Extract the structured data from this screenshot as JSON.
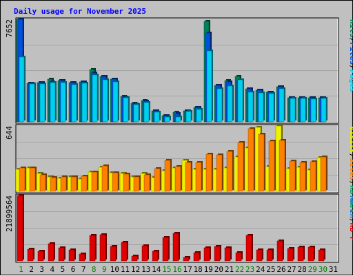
{
  "chart_data": {
    "type": "bar",
    "title": "Daily usage for November 2025",
    "days": [
      "1",
      "2",
      "3",
      "4",
      "5",
      "6",
      "7",
      "8",
      "9",
      "10",
      "11",
      "12",
      "13",
      "14",
      "15",
      "16",
      "17",
      "18",
      "19",
      "20",
      "21",
      "22",
      "23",
      "24",
      "25",
      "26",
      "27",
      "28",
      "29",
      "30",
      "31"
    ],
    "weekend_days": [
      1,
      8,
      9,
      15,
      16,
      22,
      23,
      29,
      30
    ],
    "colors": {
      "hits": "#00805c",
      "files": "#0050e0",
      "pages": "#00d0f0",
      "visits": "#f0f000",
      "sites": "#ff8000",
      "kb_in": "#2080d0",
      "kb_out": "#00a060",
      "kb_f": "#e00000",
      "weekday_label": "#000000",
      "weekend_label": "#008000"
    },
    "panels": [
      {
        "ymax_label": "7652",
        "ymax": 7652,
        "legend": [
          {
            "text": "Hits",
            "color": "#00805c"
          },
          {
            "text": "/",
            "color": "#000000"
          },
          {
            "text": "Files",
            "color": "#0050e0"
          },
          {
            "text": "/",
            "color": "#000000"
          },
          {
            "text": "Pages",
            "color": "#00d0f0"
          }
        ],
        "series": [
          {
            "name": "Hits",
            "color": "#00805c",
            "values": [
              7652,
              2870,
              2920,
              3180,
              3080,
              2950,
              3000,
              3920,
              3400,
              3200,
              1920,
              1400,
              1600,
              840,
              480,
              740,
              840,
              1100,
              7520,
              2700,
              3080,
              3400,
              2450,
              2380,
              2200,
              2630,
              1820,
              1820,
              1800,
              1800,
              null
            ]
          },
          {
            "name": "Files",
            "color": "#0050e0",
            "values": [
              7652,
              2870,
              2920,
              3000,
              3080,
              2950,
              3000,
              3660,
              3400,
              3200,
              1840,
              1340,
              1520,
              840,
              460,
              640,
              820,
              1060,
              6600,
              2700,
              3000,
              3100,
              2450,
              2380,
              2200,
              2630,
              1820,
              1820,
              1800,
              1800,
              null
            ]
          },
          {
            "name": "Pages",
            "color": "#00d0f0",
            "values": [
              4840,
              2800,
              2820,
              2940,
              2940,
              2780,
              2900,
              3500,
              3120,
              3000,
              1780,
              1280,
              1460,
              720,
              380,
              360,
              760,
              940,
              5300,
              2480,
              2680,
              3120,
              2200,
              2180,
              2100,
              2440,
              1740,
              1740,
              1700,
              1740,
              null
            ]
          }
        ]
      },
      {
        "ymax_label": "644",
        "ymax": 644,
        "legend": [
          {
            "text": "Visits",
            "color": "#f0f000"
          },
          {
            "text": "/",
            "color": "#000000"
          },
          {
            "text": "Sites",
            "color": "#ff8000"
          },
          {
            "text": "/",
            "color": "#000000"
          },
          {
            "text": "KB Out",
            "color": "#00a060"
          }
        ],
        "series": [
          {
            "name": "Visits",
            "color": "#f0f000",
            "values": [
              218,
              232,
              175,
              143,
              128,
              145,
              125,
              187,
              238,
              181,
              176,
              143,
              175,
              133,
              203,
              230,
              304,
              218,
              219,
              218,
              231,
              338,
              424,
              632,
              244,
              644,
              226,
              237,
              207,
              330,
              null
            ]
          },
          {
            "name": "Sites",
            "color": "#ff8000",
            "values": [
              232,
              232,
              165,
              138,
              143,
              145,
              146,
              187,
              250,
              181,
              169,
              143,
              162,
              221,
              307,
              245,
              287,
              287,
              365,
              356,
              395,
              483,
              614,
              565,
              493,
              500,
              301,
              284,
              292,
              336,
              null
            ]
          }
        ]
      },
      {
        "ymax_label": "21899564",
        "ymax": 21899564,
        "legend": [
          {
            "text": "KB In",
            "color": "#2080d0"
          },
          {
            "text": "/",
            "color": "#000000"
          },
          {
            "text": "KB F",
            "color": "#e00000"
          }
        ],
        "series": [
          {
            "name": "KB F",
            "color": "#e00000",
            "values": [
              21899564,
              3900000,
              3300000,
              5700000,
              4300000,
              3800000,
              2300000,
              8500000,
              8700000,
              4800000,
              6300000,
              1500000,
              5100000,
              3300000,
              7900000,
              9300000,
              1100000,
              2800000,
              4400000,
              4900000,
              4300000,
              2800000,
              8600000,
              3700000,
              3700000,
              6600000,
              4200000,
              4700000,
              4500000,
              3700000,
              null
            ]
          }
        ]
      }
    ]
  }
}
